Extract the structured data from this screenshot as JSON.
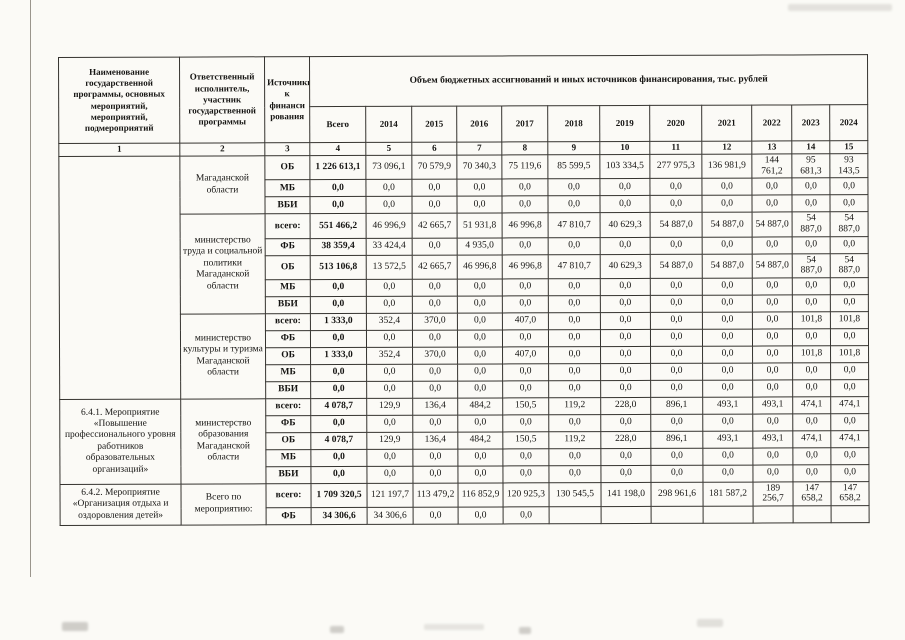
{
  "table": {
    "header_program": "Наименование государственной программы, основных мероприятий, мероприятий, подмероприятий",
    "header_executor": "Ответственный исполнитель, участник государственной программы",
    "header_source": "Источники к финанси рования",
    "header_volume": "Объем бюджетных ассигнований и иных источников финансирования, тыс. рублей",
    "year_columns": [
      "Всего",
      "2014",
      "2015",
      "2016",
      "2017",
      "2018",
      "2019",
      "2020",
      "2021",
      "2022",
      "2023",
      "2024"
    ],
    "column_numbers": [
      "1",
      "2",
      "3",
      "4",
      "5",
      "6",
      "7",
      "8",
      "9",
      "10",
      "11",
      "12",
      "13",
      "14",
      "15"
    ],
    "groups": [
      {
        "name": "",
        "name_rowspan": 13,
        "executor": "Магаданской области",
        "rows": [
          {
            "source": "ОБ",
            "values": [
              "1 226 613,1",
              "73 096,1",
              "70 579,9",
              "70 340,3",
              "75 119,6",
              "85 599,5",
              "103 334,5",
              "277 975,3",
              "136 981,9",
              "144 761,2",
              "95 681,3",
              "93 143,5"
            ]
          },
          {
            "source": "МБ",
            "values": [
              "0,0",
              "0,0",
              "0,0",
              "0,0",
              "0,0",
              "0,0",
              "0,0",
              "0,0",
              "0,0",
              "0,0",
              "0,0",
              "0,0"
            ]
          },
          {
            "source": "ВБИ",
            "values": [
              "0,0",
              "0,0",
              "0,0",
              "0,0",
              "0,0",
              "0,0",
              "0,0",
              "0,0",
              "0,0",
              "0,0",
              "0,0",
              "0,0"
            ]
          }
        ]
      },
      {
        "executor": "министерство труда и социальной политики Магаданской области",
        "rows": [
          {
            "source": "всего:",
            "values": [
              "551 466,2",
              "46 996,9",
              "42 665,7",
              "51 931,8",
              "46 996,8",
              "47 810,7",
              "40 629,3",
              "54 887,0",
              "54 887,0",
              "54 887,0",
              "54 887,0",
              "54 887,0"
            ]
          },
          {
            "source": "ФБ",
            "values": [
              "38 359,4",
              "33 424,4",
              "0,0",
              "4 935,0",
              "0,0",
              "0,0",
              "0,0",
              "0,0",
              "0,0",
              "0,0",
              "0,0",
              "0,0"
            ]
          },
          {
            "source": "ОБ",
            "values": [
              "513 106,8",
              "13 572,5",
              "42 665,7",
              "46 996,8",
              "46 996,8",
              "47 810,7",
              "40 629,3",
              "54 887,0",
              "54 887,0",
              "54 887,0",
              "54 887,0",
              "54 887,0"
            ]
          },
          {
            "source": "МБ",
            "values": [
              "0,0",
              "0,0",
              "0,0",
              "0,0",
              "0,0",
              "0,0",
              "0,0",
              "0,0",
              "0,0",
              "0,0",
              "0,0",
              "0,0"
            ]
          },
          {
            "source": "ВБИ",
            "values": [
              "0,0",
              "0,0",
              "0,0",
              "0,0",
              "0,0",
              "0,0",
              "0,0",
              "0,0",
              "0,0",
              "0,0",
              "0,0",
              "0,0"
            ]
          }
        ]
      },
      {
        "executor": "министерство культуры и туризма Магаданской области",
        "rows": [
          {
            "source": "всего:",
            "values": [
              "1 333,0",
              "352,4",
              "370,0",
              "0,0",
              "407,0",
              "0,0",
              "0,0",
              "0,0",
              "0,0",
              "0,0",
              "101,8",
              "101,8"
            ]
          },
          {
            "source": "ФБ",
            "values": [
              "0,0",
              "0,0",
              "0,0",
              "0,0",
              "0,0",
              "0,0",
              "0,0",
              "0,0",
              "0,0",
              "0,0",
              "0,0",
              "0,0"
            ]
          },
          {
            "source": "ОБ",
            "values": [
              "1 333,0",
              "352,4",
              "370,0",
              "0,0",
              "407,0",
              "0,0",
              "0,0",
              "0,0",
              "0,0",
              "0,0",
              "101,8",
              "101,8"
            ]
          },
          {
            "source": "МБ",
            "values": [
              "0,0",
              "0,0",
              "0,0",
              "0,0",
              "0,0",
              "0,0",
              "0,0",
              "0,0",
              "0,0",
              "0,0",
              "0,0",
              "0,0"
            ]
          },
          {
            "source": "ВБИ",
            "values": [
              "0,0",
              "0,0",
              "0,0",
              "0,0",
              "0,0",
              "0,0",
              "0,0",
              "0,0",
              "0,0",
              "0,0",
              "0,0",
              "0,0"
            ]
          }
        ]
      },
      {
        "name": "6.4.1. Мероприятие «Повышение профессионального уровня работников образовательных организаций»",
        "name_rowspan": 5,
        "executor": "министерство образования Магаданской области",
        "rows": [
          {
            "source": "всего:",
            "values": [
              "4 078,7",
              "129,9",
              "136,4",
              "484,2",
              "150,5",
              "119,2",
              "228,0",
              "896,1",
              "493,1",
              "493,1",
              "474,1",
              "474,1"
            ]
          },
          {
            "source": "ФБ",
            "values": [
              "0,0",
              "0,0",
              "0,0",
              "0,0",
              "0,0",
              "0,0",
              "0,0",
              "0,0",
              "0,0",
              "0,0",
              "0,0",
              "0,0"
            ]
          },
          {
            "source": "ОБ",
            "values": [
              "4 078,7",
              "129,9",
              "136,4",
              "484,2",
              "150,5",
              "119,2",
              "228,0",
              "896,1",
              "493,1",
              "493,1",
              "474,1",
              "474,1"
            ]
          },
          {
            "source": "МБ",
            "values": [
              "0,0",
              "0,0",
              "0,0",
              "0,0",
              "0,0",
              "0,0",
              "0,0",
              "0,0",
              "0,0",
              "0,0",
              "0,0",
              "0,0"
            ]
          },
          {
            "source": "ВБИ",
            "values": [
              "0,0",
              "0,0",
              "0,0",
              "0,0",
              "0,0",
              "0,0",
              "0,0",
              "0,0",
              "0,0",
              "0,0",
              "0,0",
              "0,0"
            ]
          }
        ]
      },
      {
        "name": "6.4.2. Мероприятие «Организация отдыха и оздоровления детей»",
        "name_rowspan": 2,
        "executor": "Всего по мероприятию:",
        "rows": [
          {
            "source": "всего:",
            "values": [
              "1 709 320,5",
              "121 197,7",
              "113 479,2",
              "116 852,9",
              "120 925,3",
              "130 545,5",
              "141 198,0",
              "298 961,6",
              "181 587,2",
              "189 256,7",
              "147 658,2",
              "147 658,2"
            ]
          },
          {
            "source": "ФБ",
            "values": [
              "34 306,6",
              "34 306,6",
              "0,0",
              "0,0",
              "0,0",
              "",
              "",
              "",
              "",
              "",
              "",
              ""
            ]
          }
        ]
      }
    ]
  }
}
